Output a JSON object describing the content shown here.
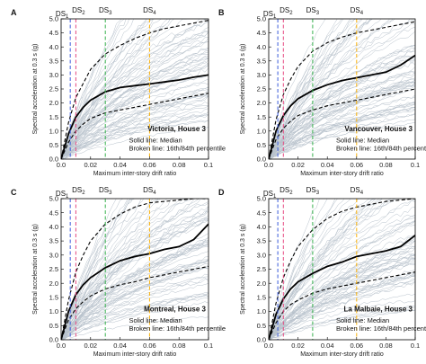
{
  "chart_data": [
    {
      "type": "line",
      "panel": "A",
      "title": "Victoria, House 3",
      "xlabel": "Maximum inter-story drift ratio",
      "ylabel": "Spectral acceleration at 0.3 s (g)",
      "xlim": [
        0,
        0.1
      ],
      "ylim": [
        0,
        5
      ],
      "xticks": [
        "0.0",
        "0.02",
        "0.04",
        "0.06",
        "0.08",
        "0.1"
      ],
      "yticks": [
        "0.0",
        "0.5",
        "1.0",
        "1.5",
        "2.0",
        "2.5",
        "3.0",
        "3.5",
        "4.0",
        "4.5",
        "5.0"
      ],
      "note": [
        "Solid line: Median",
        "Broken line: 16th/84th percentile"
      ],
      "damage_states": [
        {
          "label": "DS",
          "sub": "1",
          "x": 0.0062,
          "color": "#3b5bdb"
        },
        {
          "label": "DS",
          "sub": "2",
          "x": 0.01,
          "color": "#e64980"
        },
        {
          "label": "DS",
          "sub": "3",
          "x": 0.03,
          "color": "#37b24d"
        },
        {
          "label": "DS",
          "sub": "4",
          "x": 0.06,
          "color": "#fab005"
        }
      ],
      "series": [
        {
          "name": "Median",
          "x": [
            0,
            0.005,
            0.01,
            0.015,
            0.02,
            0.03,
            0.04,
            0.05,
            0.06,
            0.07,
            0.08,
            0.09,
            0.1
          ],
          "values": [
            0,
            0.9,
            1.5,
            1.85,
            2.1,
            2.4,
            2.55,
            2.62,
            2.68,
            2.75,
            2.82,
            2.92,
            3.0
          ]
        },
        {
          "name": "16th percentile",
          "x": [
            0,
            0.005,
            0.01,
            0.015,
            0.02,
            0.03,
            0.04,
            0.05,
            0.06,
            0.07,
            0.08,
            0.09,
            0.1
          ],
          "values": [
            0,
            0.6,
            1.0,
            1.25,
            1.45,
            1.65,
            1.75,
            1.85,
            1.95,
            2.05,
            2.15,
            2.25,
            2.35
          ]
        },
        {
          "name": "84th percentile",
          "x": [
            0,
            0.005,
            0.01,
            0.015,
            0.02,
            0.03,
            0.04,
            0.05,
            0.06,
            0.07,
            0.08,
            0.09,
            0.1
          ],
          "values": [
            0,
            1.3,
            2.2,
            2.7,
            3.2,
            3.75,
            4.05,
            4.3,
            4.5,
            4.65,
            4.75,
            4.85,
            4.95
          ]
        }
      ]
    },
    {
      "type": "line",
      "panel": "B",
      "title": "Vancouver, House 3",
      "xlabel": "Maximum inter-story drift ratio",
      "ylabel": "Spectral acceleration at 0.3 s (g)",
      "xlim": [
        0,
        0.1
      ],
      "ylim": [
        0,
        5
      ],
      "xticks": [
        "0.0",
        "0.02",
        "0.04",
        "0.06",
        "0.08",
        "0.1"
      ],
      "yticks": [
        "0.0",
        "0.5",
        "1.0",
        "1.5",
        "2.0",
        "2.5",
        "3.0",
        "3.5",
        "4.0",
        "4.5",
        "5.0"
      ],
      "note": [
        "Solid line: Median",
        "Broken line: 16th/84th percentile"
      ],
      "damage_states": [
        {
          "label": "DS",
          "sub": "1",
          "x": 0.0062,
          "color": "#3b5bdb"
        },
        {
          "label": "DS",
          "sub": "2",
          "x": 0.01,
          "color": "#e64980"
        },
        {
          "label": "DS",
          "sub": "3",
          "x": 0.03,
          "color": "#37b24d"
        },
        {
          "label": "DS",
          "sub": "4",
          "x": 0.06,
          "color": "#fab005"
        }
      ],
      "series": [
        {
          "name": "Median",
          "x": [
            0,
            0.005,
            0.01,
            0.015,
            0.02,
            0.03,
            0.04,
            0.05,
            0.06,
            0.07,
            0.08,
            0.09,
            0.1
          ],
          "values": [
            0,
            1.0,
            1.55,
            1.9,
            2.15,
            2.45,
            2.65,
            2.8,
            2.9,
            3.0,
            3.1,
            3.35,
            3.7
          ]
        },
        {
          "name": "16th percentile",
          "x": [
            0,
            0.005,
            0.01,
            0.015,
            0.02,
            0.03,
            0.04,
            0.05,
            0.06,
            0.07,
            0.08,
            0.09,
            0.1
          ],
          "values": [
            0,
            0.7,
            1.1,
            1.35,
            1.55,
            1.75,
            1.9,
            2.0,
            2.1,
            2.2,
            2.3,
            2.4,
            2.5
          ]
        },
        {
          "name": "84th percentile",
          "x": [
            0,
            0.005,
            0.01,
            0.015,
            0.02,
            0.03,
            0.04,
            0.05,
            0.06,
            0.07,
            0.08,
            0.09,
            0.1
          ],
          "values": [
            0,
            1.4,
            2.3,
            2.85,
            3.3,
            3.85,
            4.15,
            4.35,
            4.5,
            4.6,
            4.7,
            4.8,
            4.9
          ]
        }
      ]
    },
    {
      "type": "line",
      "panel": "C",
      "title": "Montreal, House 3",
      "xlabel": "Maximum inter-story drift ratio",
      "ylabel": "Spectral acceleration at 0.3 s (g)",
      "xlim": [
        0,
        0.1
      ],
      "ylim": [
        0,
        5
      ],
      "xticks": [
        "0.0",
        "0.02",
        "0.04",
        "0.06",
        "0.08",
        "0.1"
      ],
      "yticks": [
        "0.0",
        "0.5",
        "1.0",
        "1.5",
        "2.0",
        "2.5",
        "3.0",
        "3.5",
        "4.0",
        "4.5",
        "5.0"
      ],
      "note": [
        "Solid line: Median",
        "Broken line: 16th/84th percentile"
      ],
      "damage_states": [
        {
          "label": "DS",
          "sub": "1",
          "x": 0.0062,
          "color": "#3b5bdb"
        },
        {
          "label": "DS",
          "sub": "2",
          "x": 0.01,
          "color": "#e64980"
        },
        {
          "label": "DS",
          "sub": "3",
          "x": 0.03,
          "color": "#37b24d"
        },
        {
          "label": "DS",
          "sub": "4",
          "x": 0.06,
          "color": "#fab005"
        }
      ],
      "series": [
        {
          "name": "Median",
          "x": [
            0,
            0.005,
            0.01,
            0.015,
            0.02,
            0.03,
            0.04,
            0.05,
            0.06,
            0.07,
            0.08,
            0.09,
            0.1
          ],
          "values": [
            0,
            1.0,
            1.6,
            1.95,
            2.2,
            2.55,
            2.8,
            2.95,
            3.05,
            3.2,
            3.3,
            3.55,
            4.1
          ]
        },
        {
          "name": "16th percentile",
          "x": [
            0,
            0.005,
            0.01,
            0.015,
            0.02,
            0.03,
            0.04,
            0.05,
            0.06,
            0.07,
            0.08,
            0.09,
            0.1
          ],
          "values": [
            0,
            0.7,
            1.1,
            1.35,
            1.55,
            1.8,
            1.95,
            2.05,
            2.2,
            2.3,
            2.4,
            2.5,
            2.6
          ]
        },
        {
          "name": "84th percentile",
          "x": [
            0,
            0.005,
            0.01,
            0.015,
            0.02,
            0.03,
            0.04,
            0.05,
            0.06,
            0.07,
            0.08,
            0.09,
            0.1
          ],
          "values": [
            0,
            1.4,
            2.4,
            3.0,
            3.5,
            4.1,
            4.45,
            4.7,
            4.85,
            4.9,
            4.95,
            5.0,
            5.0
          ]
        }
      ]
    },
    {
      "type": "line",
      "panel": "D",
      "title": "La Malbaie, House 3",
      "xlabel": "Maximum inter-story drift ratio",
      "ylabel": "Spectral acceleration at 0.3 s (g)",
      "xlim": [
        0,
        0.1
      ],
      "ylim": [
        0,
        5
      ],
      "xticks": [
        "0.0",
        "0.02",
        "0.04",
        "0.06",
        "0.08",
        "0.1"
      ],
      "yticks": [
        "0.0",
        "0.5",
        "1.0",
        "1.5",
        "2.0",
        "2.5",
        "3.0",
        "3.5",
        "4.0",
        "4.5",
        "5.0"
      ],
      "note": [
        "Solid line: Median",
        "Broken line: 16th/84th percentile"
      ],
      "damage_states": [
        {
          "label": "DS",
          "sub": "1",
          "x": 0.0062,
          "color": "#3b5bdb"
        },
        {
          "label": "DS",
          "sub": "2",
          "x": 0.01,
          "color": "#e64980"
        },
        {
          "label": "DS",
          "sub": "3",
          "x": 0.03,
          "color": "#37b24d"
        },
        {
          "label": "DS",
          "sub": "4",
          "x": 0.06,
          "color": "#fab005"
        }
      ],
      "series": [
        {
          "name": "Median",
          "x": [
            0,
            0.005,
            0.01,
            0.015,
            0.02,
            0.03,
            0.04,
            0.05,
            0.06,
            0.07,
            0.08,
            0.09,
            0.1
          ],
          "values": [
            0,
            0.9,
            1.45,
            1.8,
            2.05,
            2.35,
            2.6,
            2.75,
            2.95,
            3.05,
            3.15,
            3.3,
            3.7
          ]
        },
        {
          "name": "16th percentile",
          "x": [
            0,
            0.005,
            0.01,
            0.015,
            0.02,
            0.03,
            0.04,
            0.05,
            0.06,
            0.07,
            0.08,
            0.09,
            0.1
          ],
          "values": [
            0,
            0.6,
            1.0,
            1.25,
            1.4,
            1.65,
            1.8,
            1.9,
            2.0,
            2.1,
            2.2,
            2.3,
            2.4
          ]
        },
        {
          "name": "84th percentile",
          "x": [
            0,
            0.005,
            0.01,
            0.015,
            0.02,
            0.03,
            0.04,
            0.05,
            0.06,
            0.07,
            0.08,
            0.09,
            0.1
          ],
          "values": [
            0,
            1.3,
            2.2,
            2.8,
            3.3,
            3.9,
            4.3,
            4.55,
            4.7,
            4.8,
            4.9,
            4.95,
            5.0
          ]
        }
      ]
    }
  ]
}
